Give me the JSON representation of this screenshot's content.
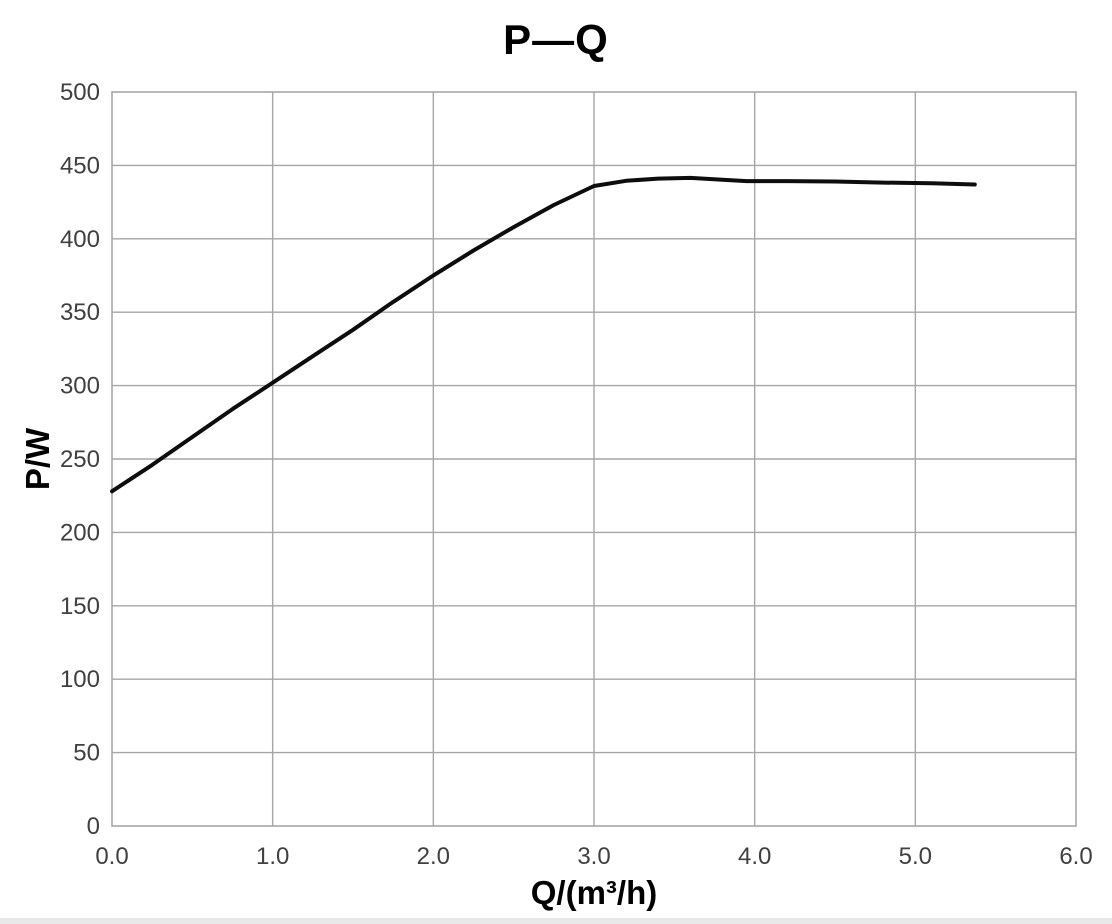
{
  "window": {
    "background": "#ffffff",
    "bottom_strip_color": "#e9e9e9"
  },
  "chart_data": {
    "type": "line",
    "title": "P—Q",
    "xlabel": "Q/(m³/h)",
    "ylabel": "P/W",
    "xlim": [
      0.0,
      6.0
    ],
    "ylim": [
      0,
      500
    ],
    "x_ticks": [
      "0.0",
      "1.0",
      "2.0",
      "3.0",
      "4.0",
      "5.0",
      "6.0"
    ],
    "y_ticks": [
      "0",
      "50",
      "100",
      "150",
      "200",
      "250",
      "300",
      "350",
      "400",
      "450",
      "500"
    ],
    "grid": true,
    "legend": "none",
    "gridline_color": "#a6a6a6",
    "tick_label_color": "#404040",
    "title_color": "#000000",
    "series": [
      {
        "name": "P vs Q",
        "color": "#0d0d0d",
        "line_width": 4,
        "points": [
          [
            0.0,
            228
          ],
          [
            0.25,
            246
          ],
          [
            0.5,
            265
          ],
          [
            0.75,
            284
          ],
          [
            1.0,
            302
          ],
          [
            1.25,
            320
          ],
          [
            1.5,
            338
          ],
          [
            1.75,
            357
          ],
          [
            2.0,
            375
          ],
          [
            2.25,
            392
          ],
          [
            2.5,
            408
          ],
          [
            2.75,
            423
          ],
          [
            3.0,
            436
          ],
          [
            3.2,
            439.5
          ],
          [
            3.4,
            441
          ],
          [
            3.6,
            441.5
          ],
          [
            3.8,
            440.2
          ],
          [
            3.95,
            439.3
          ],
          [
            4.2,
            439.3
          ],
          [
            4.5,
            439
          ],
          [
            4.8,
            438.3
          ],
          [
            5.1,
            437.8
          ],
          [
            5.37,
            437
          ]
        ]
      }
    ]
  }
}
